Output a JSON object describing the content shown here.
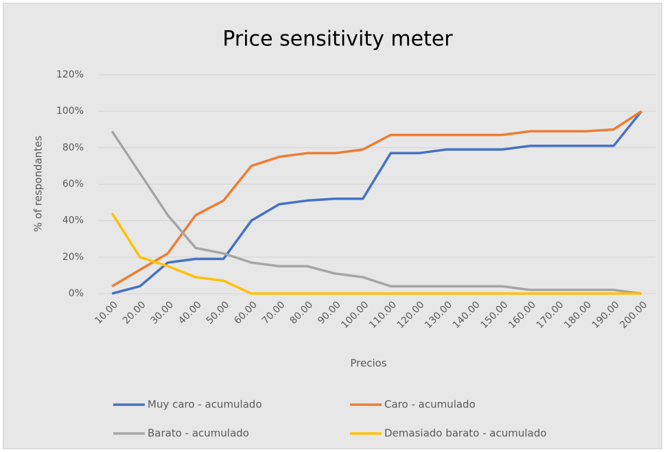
{
  "chart_data": {
    "type": "line",
    "title": "Price sensitivity meter",
    "x_label": "Precios",
    "y_label": "% of respondantes",
    "categories": [
      "10.00",
      "20.00",
      "30.00",
      "40.00",
      "50.00",
      "60.00",
      "70.00",
      "80.00",
      "90.00",
      "100.00",
      "110.00",
      "120.00",
      "130.00",
      "140.00",
      "150.00",
      "160.00",
      "170.00",
      "180.00",
      "190.00",
      "200.00"
    ],
    "series": [
      {
        "name": "Muy caro - acumulado",
        "color": "#4472c4",
        "values": [
          0,
          4,
          17,
          19,
          19,
          40,
          49,
          51,
          52,
          52,
          77,
          77,
          79,
          79,
          79,
          81,
          81,
          81,
          81,
          100
        ]
      },
      {
        "name": "Caro - acumulado",
        "color": "#ed7d31",
        "values": [
          4,
          13,
          22,
          43,
          51,
          70,
          75,
          77,
          77,
          79,
          87,
          87,
          87,
          87,
          87,
          89,
          89,
          89,
          90,
          100
        ]
      },
      {
        "name": "Barato - acumulado",
        "color": "#a5a5a5",
        "values": [
          89,
          66,
          43,
          25,
          22,
          17,
          15,
          15,
          11,
          9,
          4,
          4,
          4,
          4,
          4,
          2,
          2,
          2,
          2,
          0
        ]
      },
      {
        "name": "Demasiado barato - acumulado",
        "color": "#ffc000",
        "values": [
          44,
          20,
          15,
          9,
          7,
          0,
          0,
          0,
          0,
          0,
          0,
          0,
          0,
          0,
          0,
          0,
          0,
          0,
          0,
          0
        ]
      }
    ],
    "ylim": [
      0,
      120
    ],
    "yticks": [
      {
        "value": 0,
        "label": "0%"
      },
      {
        "value": 20,
        "label": "20%"
      },
      {
        "value": 40,
        "label": "40%"
      },
      {
        "value": 60,
        "label": "60%"
      },
      {
        "value": 80,
        "label": "80%"
      },
      {
        "value": 100,
        "label": "100%"
      },
      {
        "value": 120,
        "label": "120%"
      }
    ],
    "grid": true,
    "legend": "bottom"
  }
}
